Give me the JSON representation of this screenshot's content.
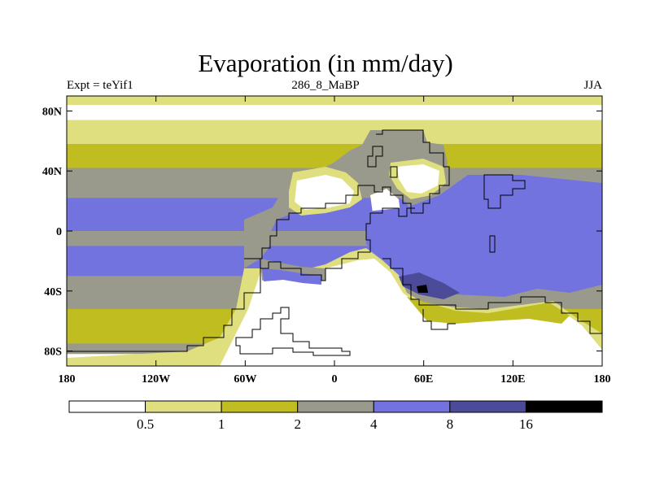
{
  "chart_data": {
    "type": "heatmap",
    "title": "Evaporation (in mm/day)",
    "subtitle_left": "Expt = teYif1",
    "subtitle_center": "286_8_MaBP",
    "subtitle_right": "JJA",
    "x_ticks": [
      "180",
      "120W",
      "60W",
      "0",
      "60E",
      "120E",
      "180"
    ],
    "y_ticks": [
      "80N",
      "40N",
      "0",
      "40S",
      "80S"
    ],
    "xlim": [
      -180,
      180
    ],
    "ylim": [
      -90,
      90
    ],
    "colorbar": {
      "levels": [
        "0.5",
        "1",
        "2",
        "4",
        "8",
        "16"
      ],
      "colors": [
        "#ffffff",
        "#e0df80",
        "#c0bd20",
        "#9a9a8c",
        "#7373e0",
        "#4b4b9a",
        "#000000"
      ]
    },
    "bands": [
      {
        "lat_top": 90,
        "lat_bottom": 84,
        "color_index": 1
      },
      {
        "lat_top": 84,
        "lat_bottom": 74,
        "color_index": 0
      },
      {
        "lat_top": 74,
        "lat_bottom": 58,
        "color_index": 1
      },
      {
        "lat_top": 58,
        "lat_bottom": 42,
        "color_index": 2
      },
      {
        "lat_top": 42,
        "lat_bottom": 22,
        "color_index": 3
      },
      {
        "lat_top": 22,
        "lat_bottom": 0,
        "color_index": 4
      },
      {
        "lat_top": 0,
        "lat_bottom": -10,
        "color_index": 3
      },
      {
        "lat_top": -10,
        "lat_bottom": -30,
        "color_index": 4
      },
      {
        "lat_top": -30,
        "lat_bottom": -52,
        "color_index": 3
      },
      {
        "lat_top": -52,
        "lat_bottom": -75,
        "color_index": 2
      },
      {
        "lat_top": -75,
        "lat_bottom": -82,
        "color_index": 3
      },
      {
        "lat_top": -82,
        "lat_bottom": -90,
        "color_index": 0
      }
    ]
  }
}
